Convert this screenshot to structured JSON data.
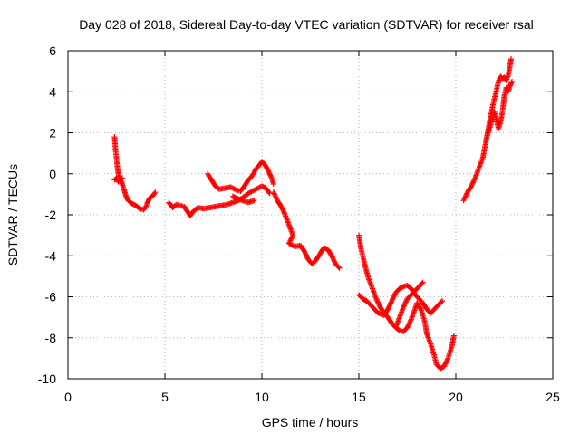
{
  "chart_data": {
    "type": "scatter",
    "title": "Day 028 of 2018, Sidereal Day-to-day VTEC variation (SDTVAR) for receiver rsal",
    "xlabel": "GPS time / hours",
    "ylabel": "SDTVAR / TECUs",
    "xlim": [
      0,
      25
    ],
    "ylim": [
      -10,
      6
    ],
    "xticks": [
      0,
      5,
      10,
      15,
      20,
      25
    ],
    "yticks": [
      -10,
      -8,
      -6,
      -4,
      -2,
      0,
      2,
      4,
      6
    ],
    "grid": true,
    "marker": "plus",
    "color": "#ff0000",
    "series": [
      {
        "points": [
          [
            2.4,
            1.8
          ],
          [
            2.45,
            1.2
          ],
          [
            2.5,
            0.8
          ],
          [
            2.55,
            0.3
          ],
          [
            2.6,
            0.0
          ],
          [
            2.7,
            -0.3
          ],
          [
            2.8,
            -0.5
          ],
          [
            2.9,
            -0.8
          ]
        ]
      },
      {
        "points": [
          [
            2.4,
            -0.3
          ],
          [
            2.5,
            -0.2
          ],
          [
            2.6,
            -0.4
          ],
          [
            2.7,
            -0.3
          ],
          [
            2.8,
            -0.2
          ]
        ]
      },
      {
        "points": [
          [
            2.9,
            -0.8
          ],
          [
            3.0,
            -1.1
          ],
          [
            3.1,
            -1.3
          ],
          [
            3.3,
            -1.45
          ],
          [
            3.5,
            -1.55
          ],
          [
            3.7,
            -1.7
          ],
          [
            3.9,
            -1.75
          ],
          [
            4.0,
            -1.65
          ],
          [
            4.1,
            -1.4
          ],
          [
            4.2,
            -1.2
          ],
          [
            4.4,
            -1.05
          ],
          [
            4.5,
            -0.9
          ]
        ]
      },
      {
        "points": [
          [
            5.2,
            -1.4
          ],
          [
            5.4,
            -1.65
          ],
          [
            5.6,
            -1.5
          ],
          [
            5.8,
            -1.55
          ],
          [
            6.0,
            -1.6
          ],
          [
            6.2,
            -1.9
          ],
          [
            6.3,
            -2.05
          ],
          [
            6.5,
            -1.8
          ],
          [
            6.7,
            -1.65
          ],
          [
            7.0,
            -1.7
          ],
          [
            7.3,
            -1.65
          ],
          [
            7.6,
            -1.6
          ],
          [
            7.9,
            -1.55
          ],
          [
            8.2,
            -1.5
          ],
          [
            8.5,
            -1.4
          ],
          [
            8.8,
            -1.3
          ],
          [
            9.1,
            -1.1
          ],
          [
            9.4,
            -0.9
          ],
          [
            9.7,
            -0.75
          ],
          [
            10.0,
            -0.6
          ],
          [
            10.2,
            -0.7
          ],
          [
            10.4,
            -0.95
          ]
        ]
      },
      {
        "points": [
          [
            7.2,
            0.0
          ],
          [
            7.4,
            -0.3
          ],
          [
            7.6,
            -0.6
          ],
          [
            7.8,
            -0.75
          ],
          [
            8.1,
            -0.7
          ],
          [
            8.4,
            -0.65
          ],
          [
            8.7,
            -0.8
          ],
          [
            8.9,
            -0.85
          ],
          [
            9.1,
            -0.6
          ],
          [
            9.3,
            -0.3
          ],
          [
            9.5,
            -0.1
          ],
          [
            9.7,
            0.25
          ],
          [
            9.9,
            0.45
          ],
          [
            10.0,
            0.6
          ],
          [
            10.15,
            0.45
          ],
          [
            10.3,
            0.2
          ],
          [
            10.5,
            -0.2
          ],
          [
            10.6,
            -0.5
          ]
        ]
      },
      {
        "points": [
          [
            8.5,
            -1.1
          ],
          [
            8.7,
            -1.2
          ],
          [
            9.0,
            -1.3
          ],
          [
            9.3,
            -1.4
          ],
          [
            9.6,
            -1.3
          ]
        ]
      },
      {
        "points": [
          [
            10.6,
            -0.9
          ],
          [
            10.8,
            -1.3
          ],
          [
            11.0,
            -1.6
          ],
          [
            11.2,
            -2.0
          ],
          [
            11.4,
            -2.5
          ],
          [
            11.6,
            -3.0
          ],
          [
            11.4,
            -3.4
          ],
          [
            11.7,
            -3.55
          ],
          [
            12.0,
            -3.5
          ],
          [
            12.2,
            -3.8
          ],
          [
            12.4,
            -4.2
          ],
          [
            12.6,
            -4.4
          ],
          [
            12.8,
            -4.2
          ],
          [
            13.0,
            -3.9
          ],
          [
            13.2,
            -3.6
          ],
          [
            13.4,
            -3.7
          ],
          [
            13.6,
            -4.0
          ],
          [
            13.8,
            -4.4
          ],
          [
            14.0,
            -4.6
          ]
        ]
      },
      {
        "points": [
          [
            15.0,
            -3.0
          ],
          [
            15.1,
            -3.6
          ],
          [
            15.2,
            -4.0
          ],
          [
            15.35,
            -4.6
          ],
          [
            15.5,
            -5.1
          ],
          [
            15.7,
            -5.6
          ],
          [
            15.9,
            -6.1
          ],
          [
            16.1,
            -6.5
          ],
          [
            16.3,
            -6.8
          ],
          [
            16.5,
            -7.0
          ],
          [
            16.7,
            -7.3
          ],
          [
            16.9,
            -7.5
          ],
          [
            17.1,
            -7.65
          ],
          [
            17.3,
            -7.7
          ],
          [
            17.5,
            -7.5
          ],
          [
            17.7,
            -7.1
          ],
          [
            17.9,
            -6.6
          ],
          [
            18.0,
            -6.3
          ],
          [
            18.2,
            -6.6
          ],
          [
            18.4,
            -7.2
          ],
          [
            18.5,
            -7.8
          ],
          [
            18.7,
            -8.3
          ],
          [
            18.9,
            -8.9
          ],
          [
            19.0,
            -9.3
          ],
          [
            19.2,
            -9.5
          ],
          [
            19.4,
            -9.4
          ],
          [
            19.6,
            -9.0
          ],
          [
            19.8,
            -8.4
          ],
          [
            19.9,
            -7.9
          ]
        ]
      },
      {
        "points": [
          [
            15.0,
            -5.9
          ],
          [
            15.2,
            -6.1
          ],
          [
            15.4,
            -6.2
          ],
          [
            15.6,
            -6.4
          ],
          [
            15.8,
            -6.6
          ],
          [
            16.0,
            -6.8
          ],
          [
            16.3,
            -6.9
          ],
          [
            16.5,
            -6.6
          ],
          [
            16.7,
            -6.2
          ],
          [
            16.9,
            -5.8
          ],
          [
            17.1,
            -5.6
          ],
          [
            17.3,
            -5.5
          ],
          [
            17.5,
            -5.45
          ],
          [
            17.7,
            -5.6
          ],
          [
            17.9,
            -5.9
          ],
          [
            18.1,
            -6.1
          ],
          [
            18.3,
            -6.3
          ],
          [
            18.5,
            -6.6
          ],
          [
            18.7,
            -6.8
          ],
          [
            18.9,
            -6.6
          ],
          [
            19.1,
            -6.4
          ],
          [
            19.3,
            -6.2
          ]
        ]
      },
      {
        "points": [
          [
            16.9,
            -7.5
          ],
          [
            17.1,
            -7.0
          ],
          [
            17.3,
            -6.5
          ],
          [
            17.5,
            -6.1
          ],
          [
            17.7,
            -5.9
          ],
          [
            17.9,
            -5.7
          ],
          [
            18.1,
            -5.5
          ],
          [
            18.3,
            -5.3
          ]
        ]
      },
      {
        "points": [
          [
            20.4,
            -1.3
          ],
          [
            20.6,
            -0.9
          ],
          [
            20.8,
            -0.6
          ],
          [
            21.0,
            -0.2
          ],
          [
            21.2,
            0.3
          ],
          [
            21.4,
            0.8
          ],
          [
            21.5,
            1.3
          ],
          [
            21.6,
            1.8
          ],
          [
            21.7,
            2.3
          ],
          [
            21.8,
            2.8
          ],
          [
            21.9,
            3.3
          ],
          [
            22.0,
            3.7
          ],
          [
            22.1,
            4.1
          ],
          [
            22.2,
            4.5
          ],
          [
            22.3,
            4.75
          ],
          [
            22.4,
            4.65
          ],
          [
            22.5,
            4.7
          ],
          [
            22.6,
            4.55
          ],
          [
            22.7,
            4.8
          ],
          [
            22.8,
            5.3
          ],
          [
            22.85,
            5.6
          ]
        ]
      },
      {
        "points": [
          [
            21.6,
            1.8
          ],
          [
            21.8,
            2.4
          ],
          [
            22.0,
            3.0
          ],
          [
            22.2,
            2.2
          ],
          [
            22.3,
            2.5
          ],
          [
            22.4,
            3.0
          ],
          [
            22.5,
            3.8
          ],
          [
            22.6,
            4.2
          ],
          [
            22.7,
            4.0
          ],
          [
            22.8,
            4.3
          ],
          [
            22.9,
            4.5
          ]
        ]
      }
    ]
  }
}
